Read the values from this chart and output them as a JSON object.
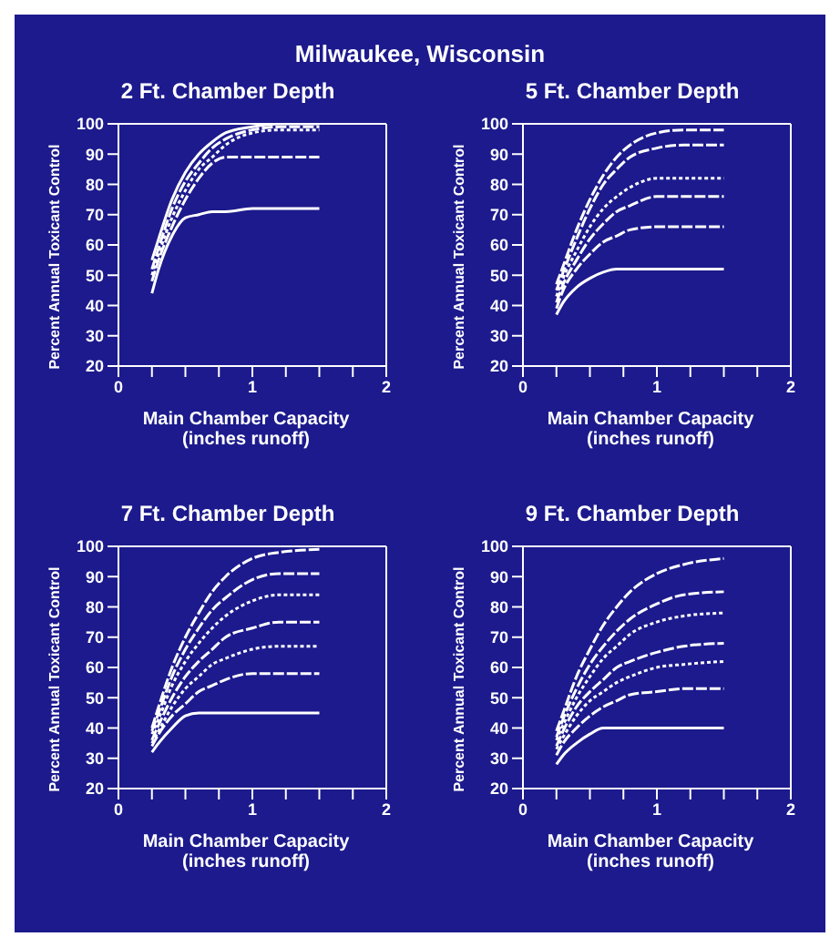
{
  "chart_data": [
    {
      "type": "line",
      "title": "2 Ft. Chamber Depth",
      "annotations": [
        "Milwaukee, Wisconsin"
      ],
      "xlabel": "Main Chamber Capacity\n(inches runoff)",
      "ylabel": "Percent Annual Toxicant Control",
      "x": [
        0.25,
        0.3,
        0.4,
        0.5,
        0.6,
        0.7,
        0.8,
        1.0,
        1.2,
        1.5
      ],
      "xlim": [
        0,
        2
      ],
      "xticks": [
        0,
        {
          "value": 0.25,
          "label": null
        },
        {
          "value": 0.5,
          "label": null
        },
        {
          "value": 0.75,
          "label": null
        },
        1,
        {
          "value": 1.25,
          "label": null
        },
        {
          "value": 1.5,
          "label": null
        },
        {
          "value": 1.75,
          "label": null
        },
        2
      ],
      "ylim": [
        20,
        100
      ],
      "yticks": [
        20,
        30,
        40,
        50,
        60,
        70,
        80,
        90,
        100
      ],
      "grid": false,
      "legend": false,
      "marker": "none",
      "series": [
        {
          "color": "#ffffff",
          "line_style": "solid",
          "values": [
            55,
            62,
            75,
            84,
            90,
            94,
            97,
            99,
            100,
            100
          ]
        },
        {
          "color": "#ffffff",
          "line_style": "dashed",
          "values": [
            52,
            59,
            72,
            81,
            87,
            92,
            95,
            98,
            99,
            99
          ]
        },
        {
          "color": "#ffffff",
          "line_style": "dotted",
          "values": [
            50,
            57,
            69,
            78,
            85,
            89,
            93,
            97,
            98,
            98
          ]
        },
        {
          "color": "#ffffff",
          "line_style": "dashed",
          "values": [
            48,
            55,
            66,
            75,
            82,
            87,
            89,
            89,
            89,
            89
          ]
        },
        {
          "color": "#ffffff",
          "line_style": "solid",
          "values": [
            44,
            52,
            63,
            69,
            70,
            71,
            71,
            72,
            72,
            72
          ]
        }
      ]
    },
    {
      "type": "line",
      "title": "5 Ft. Chamber Depth",
      "xlabel": "Main Chamber Capacity\n(inches runoff)",
      "ylabel": "Percent Annual Toxicant Control",
      "x": [
        0.25,
        0.3,
        0.4,
        0.5,
        0.6,
        0.7,
        0.8,
        1.0,
        1.2,
        1.5
      ],
      "xlim": [
        0,
        2
      ],
      "xticks": [
        0,
        {
          "value": 0.25,
          "label": null
        },
        {
          "value": 0.5,
          "label": null
        },
        {
          "value": 0.75,
          "label": null
        },
        1,
        {
          "value": 1.25,
          "label": null
        },
        {
          "value": 1.5,
          "label": null
        },
        {
          "value": 1.75,
          "label": null
        },
        2
      ],
      "ylim": [
        20,
        100
      ],
      "yticks": [
        20,
        30,
        40,
        50,
        60,
        70,
        80,
        90,
        100
      ],
      "grid": false,
      "legend": false,
      "marker": "none",
      "series": [
        {
          "color": "#ffffff",
          "line_style": "dashed",
          "values": [
            47,
            53,
            65,
            75,
            83,
            89,
            93,
            97,
            98,
            98
          ]
        },
        {
          "color": "#ffffff",
          "line_style": "dashed",
          "values": [
            45,
            51,
            62,
            72,
            80,
            85,
            89,
            92,
            93,
            93
          ]
        },
        {
          "color": "#ffffff",
          "line_style": "dotted",
          "values": [
            43,
            49,
            58,
            66,
            72,
            76,
            79,
            82,
            82,
            82
          ]
        },
        {
          "color": "#ffffff",
          "line_style": "dashed",
          "values": [
            41,
            47,
            55,
            62,
            67,
            71,
            73,
            76,
            76,
            76
          ]
        },
        {
          "color": "#ffffff",
          "line_style": "dashed",
          "values": [
            39,
            45,
            52,
            57,
            61,
            63,
            65,
            66,
            66,
            66
          ]
        },
        {
          "color": "#ffffff",
          "line_style": "solid",
          "values": [
            37,
            41,
            46,
            49,
            51,
            52,
            52,
            52,
            52,
            52
          ]
        }
      ]
    },
    {
      "type": "line",
      "title": "7 Ft. Chamber Depth",
      "xlabel": "Main Chamber Capacity\n(inches runoff)",
      "ylabel": "Percent Annual Toxicant Control",
      "x": [
        0.25,
        0.3,
        0.4,
        0.5,
        0.6,
        0.7,
        0.8,
        1.0,
        1.2,
        1.5
      ],
      "xlim": [
        0,
        2
      ],
      "xticks": [
        0,
        {
          "value": 0.25,
          "label": null
        },
        {
          "value": 0.5,
          "label": null
        },
        {
          "value": 0.75,
          "label": null
        },
        1,
        {
          "value": 1.25,
          "label": null
        },
        {
          "value": 1.5,
          "label": null
        },
        {
          "value": 1.75,
          "label": null
        },
        2
      ],
      "ylim": [
        20,
        100
      ],
      "yticks": [
        20,
        30,
        40,
        50,
        60,
        70,
        80,
        90,
        100
      ],
      "grid": false,
      "legend": false,
      "marker": "none",
      "series": [
        {
          "color": "#ffffff",
          "line_style": "dashed",
          "values": [
            40,
            47,
            60,
            70,
            78,
            85,
            90,
            96,
            98,
            99
          ]
        },
        {
          "color": "#ffffff",
          "line_style": "dashed",
          "values": [
            39,
            45,
            57,
            66,
            73,
            79,
            83,
            89,
            91,
            91
          ]
        },
        {
          "color": "#ffffff",
          "line_style": "dotted",
          "values": [
            38,
            43,
            54,
            62,
            68,
            73,
            77,
            82,
            84,
            84
          ]
        },
        {
          "color": "#ffffff",
          "line_style": "dashed",
          "values": [
            36,
            41,
            50,
            57,
            62,
            66,
            70,
            73,
            75,
            75
          ]
        },
        {
          "color": "#ffffff",
          "line_style": "dotted",
          "values": [
            35,
            39,
            47,
            53,
            57,
            61,
            63,
            66,
            67,
            67
          ]
        },
        {
          "color": "#ffffff",
          "line_style": "dashed",
          "values": [
            34,
            38,
            44,
            48,
            52,
            54,
            56,
            58,
            58,
            58
          ]
        },
        {
          "color": "#ffffff",
          "line_style": "solid",
          "values": [
            32,
            35,
            40,
            44,
            45,
            45,
            45,
            45,
            45,
            45
          ]
        }
      ]
    },
    {
      "type": "line",
      "title": "9 Ft. Chamber Depth",
      "xlabel": "Main Chamber Capacity\n(inches runoff)",
      "ylabel": "Percent Annual Toxicant Control",
      "x": [
        0.25,
        0.3,
        0.4,
        0.5,
        0.6,
        0.7,
        0.8,
        1.0,
        1.2,
        1.5
      ],
      "xlim": [
        0,
        2
      ],
      "xticks": [
        0,
        {
          "value": 0.25,
          "label": null
        },
        {
          "value": 0.5,
          "label": null
        },
        {
          "value": 0.75,
          "label": null
        },
        1,
        {
          "value": 1.25,
          "label": null
        },
        {
          "value": 1.5,
          "label": null
        },
        {
          "value": 1.75,
          "label": null
        },
        2
      ],
      "ylim": [
        20,
        100
      ],
      "yticks": [
        20,
        30,
        40,
        50,
        60,
        70,
        80,
        90,
        100
      ],
      "grid": false,
      "legend": false,
      "marker": "none",
      "series": [
        {
          "color": "#ffffff",
          "line_style": "dashed",
          "values": [
            39,
            45,
            57,
            66,
            74,
            80,
            85,
            91,
            94,
            96
          ]
        },
        {
          "color": "#ffffff",
          "line_style": "dashed",
          "values": [
            37,
            43,
            53,
            61,
            67,
            72,
            76,
            81,
            84,
            85
          ]
        },
        {
          "color": "#ffffff",
          "line_style": "dotted",
          "values": [
            36,
            41,
            50,
            57,
            63,
            67,
            71,
            75,
            77,
            78
          ]
        },
        {
          "color": "#ffffff",
          "line_style": "dashed",
          "values": [
            34,
            39,
            47,
            52,
            56,
            60,
            62,
            65,
            67,
            68
          ]
        },
        {
          "color": "#ffffff",
          "line_style": "dotted",
          "values": [
            33,
            37,
            44,
            49,
            52,
            55,
            57,
            60,
            61,
            62
          ]
        },
        {
          "color": "#ffffff",
          "line_style": "dashed",
          "values": [
            31,
            35,
            40,
            44,
            47,
            49,
            51,
            52,
            53,
            53
          ]
        },
        {
          "color": "#ffffff",
          "line_style": "solid",
          "values": [
            28,
            31,
            35,
            38,
            40,
            40,
            40,
            40,
            40,
            40
          ]
        }
      ]
    }
  ]
}
